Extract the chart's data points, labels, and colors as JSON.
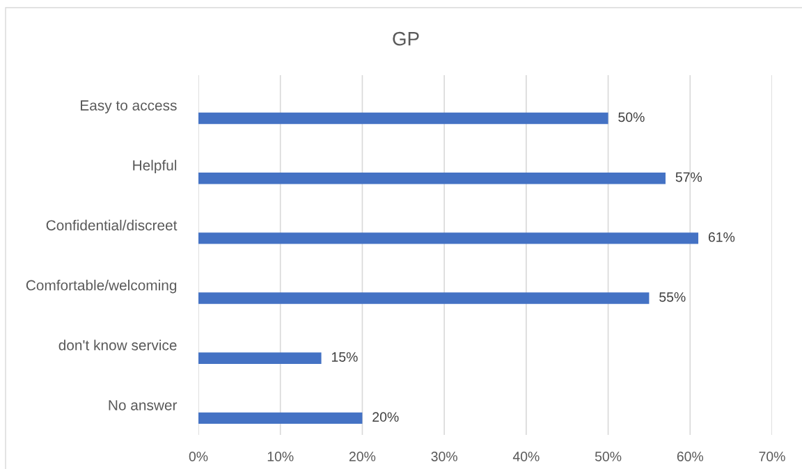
{
  "chart_data": {
    "type": "bar",
    "orientation": "horizontal",
    "title": "GP",
    "categories": [
      "Easy to access",
      "Helpful",
      "Confidential/discreet",
      "Comfortable/welcoming",
      "don't know service",
      "No answer"
    ],
    "values": [
      50,
      57,
      61,
      55,
      15,
      20
    ],
    "value_labels": [
      "50%",
      "57%",
      "61%",
      "55%",
      "15%",
      "20%"
    ],
    "color": "#4472c4",
    "xlim": [
      0,
      70
    ],
    "xticks": [
      {
        "value": 0,
        "label": "0%"
      },
      {
        "value": 10,
        "label": "10%"
      },
      {
        "value": 20,
        "label": "20%"
      },
      {
        "value": 30,
        "label": "30%"
      },
      {
        "value": 40,
        "label": "40%"
      },
      {
        "value": 50,
        "label": "50%"
      },
      {
        "value": 60,
        "label": "60%"
      },
      {
        "value": 70,
        "label": "70%"
      }
    ],
    "grid": "x"
  }
}
